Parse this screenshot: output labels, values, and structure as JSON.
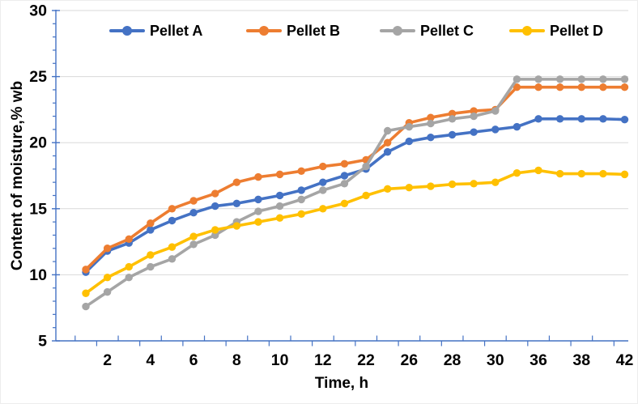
{
  "figure": {
    "type_note": "Excel-style line chart with markers",
    "background": "#ffffff",
    "axis_color": "#4472C4",
    "gridline_color": "#D9D9D9",
    "text_color": "#000000"
  },
  "chart_data": {
    "type": "line",
    "title": "",
    "xlabel": "Time, h",
    "ylabel": "Content of moisture,% wb",
    "ylim": [
      5,
      30
    ],
    "y_major_ticks": [
      5,
      10,
      15,
      20,
      25,
      30
    ],
    "y_minor_step": 1,
    "grid": "horizontal-major",
    "legend_position": "top-inside-horizontal",
    "legend_entries": [
      "Pellet A",
      "Pellet B",
      "Pellet C",
      "Pellet D"
    ],
    "categories": [
      "",
      "2",
      "",
      "4",
      "",
      "6",
      "",
      "8",
      "",
      "10",
      "",
      "12",
      "",
      "22",
      "",
      "26",
      "",
      "28",
      "",
      "30",
      "",
      "36",
      "",
      "38",
      "",
      "42"
    ],
    "series": [
      {
        "name": "Pellet A",
        "color": "#4472C4",
        "marker": "circle",
        "values": [
          10.2,
          11.8,
          12.4,
          13.4,
          14.1,
          14.7,
          15.2,
          15.4,
          15.7,
          16.0,
          16.4,
          17.0,
          17.5,
          18.0,
          19.3,
          20.1,
          20.4,
          20.6,
          20.8,
          21.0,
          21.2,
          21.8,
          21.8,
          21.8,
          21.8,
          21.75
        ]
      },
      {
        "name": "Pellet B",
        "color": "#ED7D31",
        "marker": "circle",
        "values": [
          10.4,
          12.0,
          12.7,
          13.9,
          15.0,
          15.6,
          16.15,
          17.0,
          17.4,
          17.6,
          17.85,
          18.2,
          18.4,
          18.7,
          20.0,
          21.5,
          21.9,
          22.2,
          22.4,
          22.5,
          24.2,
          24.2,
          24.2,
          24.2,
          24.2,
          24.2
        ]
      },
      {
        "name": "Pellet C",
        "color": "#A5A5A5",
        "marker": "circle",
        "values": [
          7.6,
          8.7,
          9.8,
          10.6,
          11.2,
          12.3,
          13.0,
          14.0,
          14.8,
          15.2,
          15.7,
          16.4,
          16.9,
          18.2,
          20.9,
          21.2,
          21.45,
          21.8,
          22.0,
          22.4,
          24.8,
          24.8,
          24.8,
          24.8,
          24.8,
          24.8
        ]
      },
      {
        "name": "Pellet D",
        "color": "#FFC000",
        "marker": "circle",
        "values": [
          8.6,
          9.8,
          10.6,
          11.5,
          12.1,
          12.9,
          13.4,
          13.7,
          14.0,
          14.3,
          14.6,
          15.0,
          15.4,
          16.0,
          16.5,
          16.6,
          16.7,
          16.85,
          16.9,
          17.0,
          17.7,
          17.9,
          17.65,
          17.65,
          17.65,
          17.6
        ]
      }
    ]
  }
}
